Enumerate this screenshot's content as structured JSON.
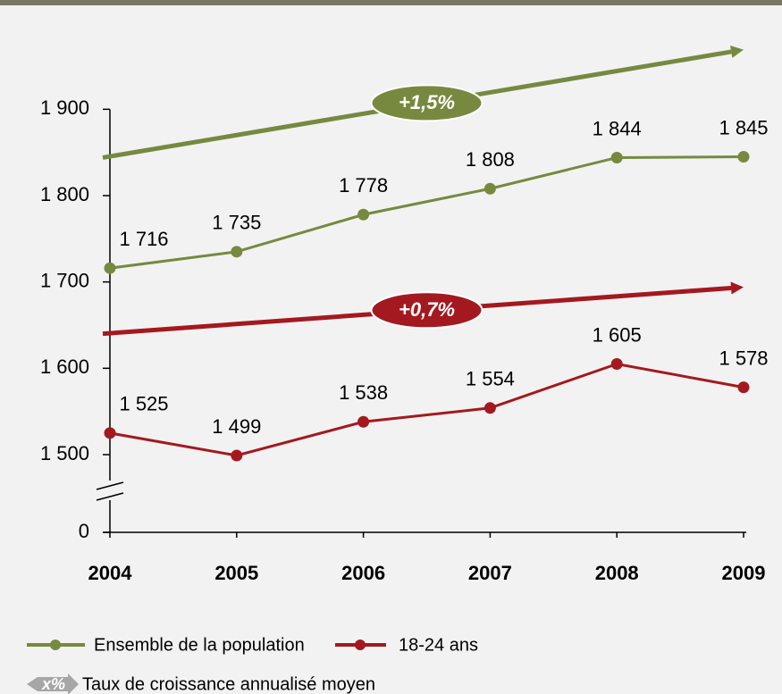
{
  "chart_data": {
    "type": "line",
    "categories": [
      "2004",
      "2005",
      "2006",
      "2007",
      "2008",
      "2009"
    ],
    "series": [
      {
        "name": "Ensemble de la population",
        "color": "#77893f",
        "values": [
          1716,
          1735,
          1778,
          1808,
          1844,
          1845
        ],
        "value_labels": [
          "1 716",
          "1 735",
          "1 778",
          "1 808",
          "1 844",
          "1 845"
        ]
      },
      {
        "name": "18-24 ans",
        "color": "#a3191f",
        "values": [
          1525,
          1499,
          1538,
          1554,
          1605,
          1578
        ],
        "value_labels": [
          "1 525",
          "1 499",
          "1 538",
          "1 554",
          "1 605",
          "1 578"
        ]
      }
    ],
    "trends": [
      {
        "color": "#77893f",
        "values": [
          1844,
          1969
        ],
        "label": "+1,5%"
      },
      {
        "color": "#a3191f",
        "values": [
          1640,
          1694
        ],
        "label": "+0,7%"
      }
    ],
    "ylim": [
      1410,
      1980
    ],
    "yticks": [
      {
        "value": 0,
        "label": "0"
      },
      {
        "value": 1500,
        "label": "1 500"
      },
      {
        "value": 1600,
        "label": "1 600"
      },
      {
        "value": 1700,
        "label": "1 700"
      },
      {
        "value": 1800,
        "label": "1 800"
      },
      {
        "value": 1900,
        "label": "1 900"
      }
    ],
    "axis_break": true,
    "legend_note": {
      "symbol": "x%",
      "label": "Taux de croissance annualisé moyen"
    }
  }
}
